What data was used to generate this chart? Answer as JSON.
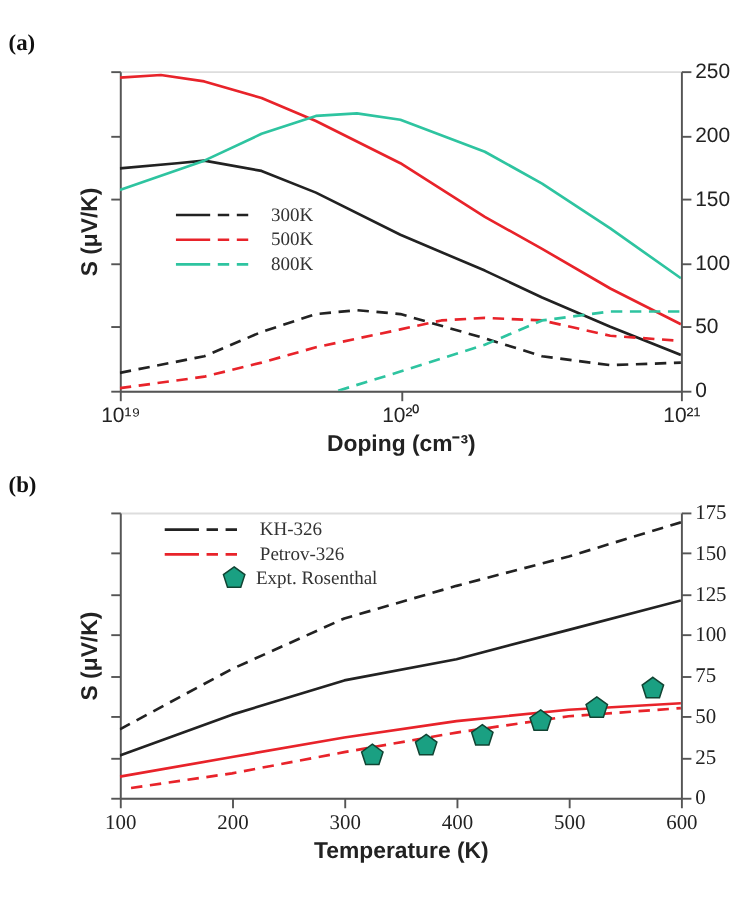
{
  "chart_data": [
    {
      "type": "line",
      "title": "(a)",
      "xlabel": "Doping (cm⁻³)",
      "ylabel": "S (μV/K)",
      "log": "x",
      "xlim": [
        1e+19,
        1e+21
      ],
      "xticks": [
        {
          "value": 1e+19,
          "label": "10¹⁹"
        },
        {
          "value": 1e+20,
          "label": "10²⁰"
        },
        {
          "value": 1e+21,
          "label": "10²¹"
        }
      ],
      "ylim": [
        0,
        250
      ],
      "yticks": [
        0,
        50,
        100,
        150,
        200,
        250
      ],
      "grid": false,
      "legend": "left",
      "series": [
        {
          "name": "300K",
          "color": "#222222",
          "line_style": "solid",
          "x": [
            1e+19,
            1.6e+19,
            2e+19,
            3.2e+19,
            5e+19,
            1e+20,
            2e+20,
            3.2e+20,
            5.6e+20,
            1e+21
          ],
          "values": [
            174,
            178,
            180,
            172,
            155,
            122,
            94,
            73,
            50,
            28
          ]
        },
        {
          "color": "#222222",
          "line_style": "dashed",
          "x": [
            1e+19,
            2e+19,
            3.2e+19,
            5e+19,
            7e+19,
            1e+20,
            2e+20,
            3.2e+20,
            5.6e+20,
            1e+21
          ],
          "values": [
            14,
            27,
            46,
            60,
            63,
            60,
            41,
            27,
            20,
            22
          ]
        },
        {
          "name": "500K",
          "color": "#e8232a",
          "line_style": "solid",
          "x": [
            1e+19,
            1.4e+19,
            2e+19,
            3.2e+19,
            5e+19,
            1e+20,
            2e+20,
            3.2e+20,
            5.6e+20,
            1e+21
          ],
          "values": [
            245,
            247,
            242,
            229,
            211,
            178,
            136,
            111,
            80,
            52
          ]
        },
        {
          "color": "#e8232a",
          "line_style": "dashed",
          "x": [
            1e+19,
            2e+19,
            3.2e+19,
            5e+19,
            1e+20,
            1.4e+20,
            2e+20,
            3.2e+20,
            5.6e+20,
            1e+21
          ],
          "values": [
            2,
            11,
            22,
            34,
            48,
            55,
            57,
            55,
            43,
            39
          ]
        },
        {
          "name": "800K",
          "color": "#2ec4a0",
          "line_style": "solid",
          "x": [
            1e+19,
            2e+19,
            3.2e+19,
            5e+19,
            7e+19,
            1e+20,
            2e+20,
            3.2e+20,
            5.6e+20,
            1e+21
          ],
          "values": [
            157,
            180,
            201,
            215,
            217,
            212,
            187,
            162,
            127,
            88
          ]
        },
        {
          "color": "#2ec4a0",
          "line_style": "dashed",
          "x": [
            6e+19,
            1e+20,
            2e+20,
            3.2e+20,
            5.6e+20,
            1e+21
          ],
          "values": [
            0,
            15,
            36,
            55,
            62,
            62
          ]
        }
      ]
    },
    {
      "type": "line",
      "title": "(b)",
      "xlabel": "Temperature (K)",
      "ylabel": "S (μV/K)",
      "xlim": [
        100,
        600
      ],
      "xticks": [
        100,
        200,
        300,
        400,
        500,
        600
      ],
      "ylim": [
        0,
        175
      ],
      "yticks": [
        0,
        25,
        50,
        75,
        100,
        125,
        150,
        175
      ],
      "grid": false,
      "legend": "top left",
      "series": [
        {
          "name": "KH-326",
          "color": "#222222",
          "line_style": "solid",
          "x": [
            100,
            200,
            300,
            400,
            500,
            600
          ],
          "values": [
            26,
            51,
            72,
            85,
            103,
            121
          ]
        },
        {
          "color": "#222222",
          "line_style": "dashed",
          "x": [
            100,
            200,
            300,
            400,
            500,
            600
          ],
          "values": [
            42,
            79,
            110,
            130,
            148,
            169
          ]
        },
        {
          "name": "Petrov-326",
          "color": "#e8232a",
          "line_style": "solid",
          "x": [
            100,
            200,
            300,
            400,
            500,
            600
          ],
          "values": [
            13,
            25,
            37,
            47,
            54,
            58
          ]
        },
        {
          "color": "#e8232a",
          "line_style": "dashed",
          "x": [
            110,
            200,
            300,
            400,
            500,
            600
          ],
          "values": [
            6,
            15,
            28,
            40,
            50,
            55
          ]
        },
        {
          "name": "Expt. Rosenthal",
          "type": "scatter",
          "color": "#1aa082",
          "x": [
            325,
            373,
            423,
            475,
            525,
            575
          ],
          "values": [
            26,
            32,
            38,
            47,
            55,
            67
          ]
        }
      ]
    }
  ]
}
